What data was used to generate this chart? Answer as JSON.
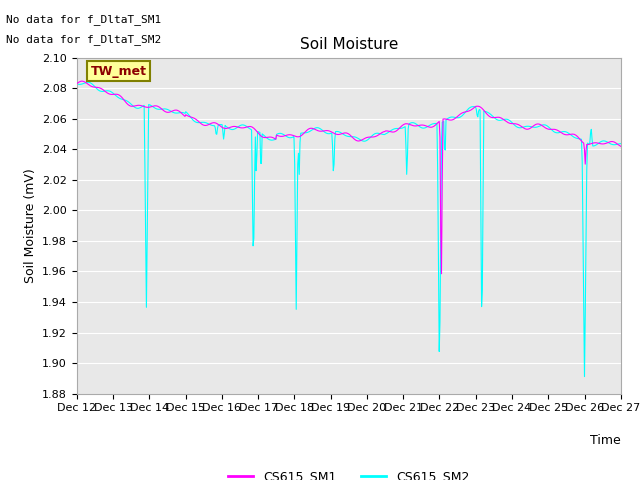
{
  "title": "Soil Moisture",
  "ylabel": "Soil Moisture (mV)",
  "xlabel": "Time",
  "ylim": [
    1.88,
    2.1
  ],
  "yticks": [
    1.88,
    1.9,
    1.92,
    1.94,
    1.96,
    1.98,
    2.0,
    2.02,
    2.04,
    2.06,
    2.08,
    2.1
  ],
  "xtick_labels": [
    "Dec 12",
    "Dec 13",
    "Dec 14",
    "Dec 15",
    "Dec 16",
    "Dec 17",
    "Dec 18",
    "Dec 19",
    "Dec 20",
    "Dec 21",
    "Dec 22",
    "Dec 23",
    "Dec 24",
    "Dec 25",
    "Dec 26",
    "Dec 27"
  ],
  "color_sm1": "#FF00FF",
  "color_sm2": "#00FFFF",
  "bg_color": "#E8E8E8",
  "annotation_text1": "No data for f_DltaT_SM1",
  "annotation_text2": "No data for f_DltaT_SM2",
  "legend_box_text": "TW_met",
  "legend_box_facecolor": "#FFFF99",
  "legend_box_edgecolor": "#808000",
  "legend_box_textcolor": "#8B0000",
  "title_fontsize": 11,
  "label_fontsize": 9,
  "tick_fontsize": 8,
  "annot_fontsize": 8,
  "legend_fontsize": 9
}
